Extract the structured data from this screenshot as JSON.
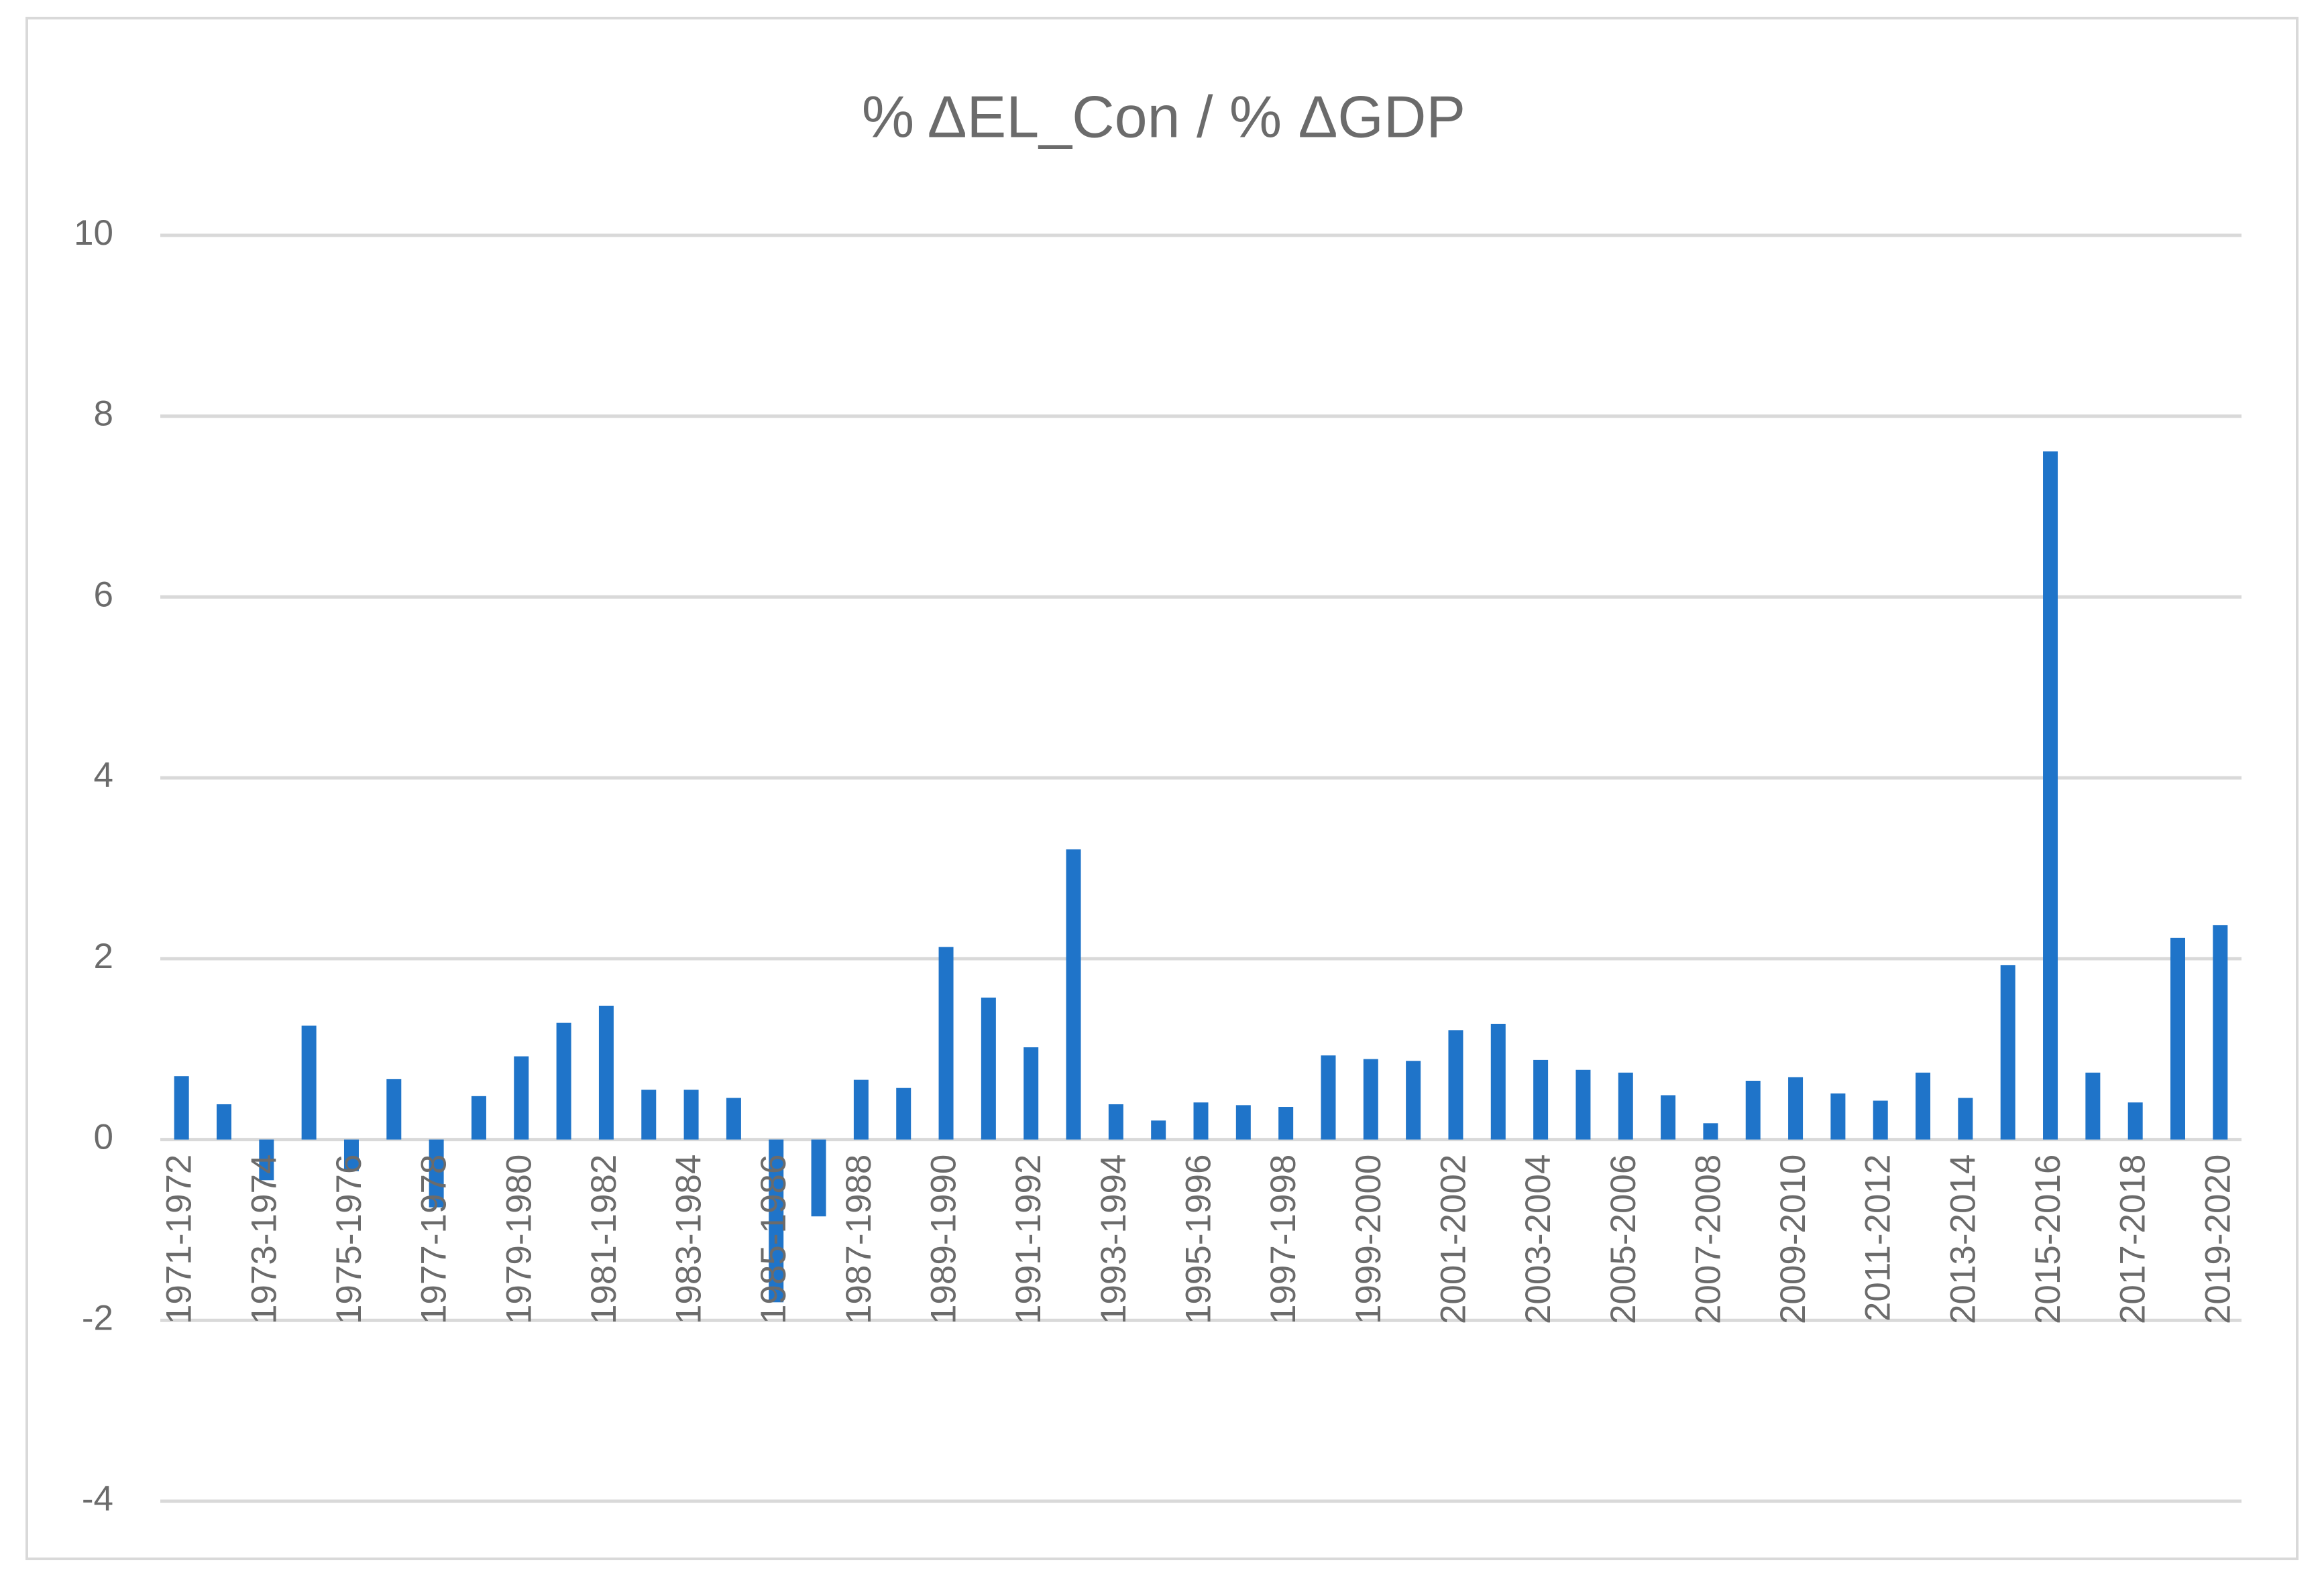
{
  "chart_data": {
    "type": "bar",
    "title": "% ΔEL_Con / % ΔGDP",
    "categories": [
      "1971-1972",
      null,
      "1973-1974",
      null,
      "1975-1976",
      null,
      "1977-1978",
      null,
      "1979-1980",
      null,
      "1981-1982",
      null,
      "1983-1984",
      null,
      "1985-1986",
      null,
      "1987-1988",
      null,
      "1989-1990",
      null,
      "1991-1992",
      null,
      "1993-1994",
      null,
      "1995-1996",
      null,
      "1997-1998",
      null,
      "1999-2000",
      null,
      "2001-2002",
      null,
      "2003-2004",
      null,
      "2005-2006",
      null,
      "2007-2008",
      null,
      "2009-2010",
      null,
      "2011-2012",
      null,
      "2013-2014",
      null,
      "2015-2016",
      null,
      "2017-2018",
      null,
      "2019-2020"
    ],
    "values": [
      0.7,
      0.39,
      -0.45,
      1.26,
      -0.35,
      0.67,
      -0.75,
      0.48,
      0.92,
      1.29,
      1.48,
      0.55,
      0.55,
      0.46,
      -1.8,
      -0.85,
      0.66,
      0.57,
      2.13,
      1.57,
      1.02,
      3.21,
      0.39,
      0.21,
      0.41,
      0.38,
      0.36,
      0.93,
      0.89,
      0.87,
      1.21,
      1.28,
      0.88,
      0.77,
      0.74,
      0.49,
      0.18,
      0.65,
      0.69,
      0.51,
      0.43,
      0.74,
      0.46,
      1.93,
      7.61,
      0.74,
      0.41,
      2.23,
      2.37
    ],
    "color": "#1f74c9",
    "ylim": [
      -4,
      10
    ],
    "yticks": [
      -4,
      -2,
      0,
      2,
      4,
      6,
      8,
      10
    ],
    "grid": true
  }
}
